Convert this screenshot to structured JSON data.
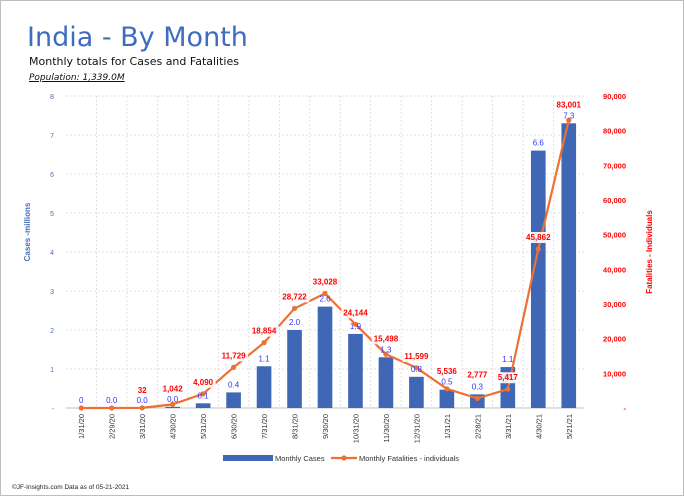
{
  "header": {
    "title": "India - By Month",
    "subtitle": "Monthly totals for Cases and Fatalities",
    "population": "Population: 1,339.0M"
  },
  "footer": "©JF-Insights.com  Data as of 05-21-2021",
  "colors": {
    "cases": "#3f67b5",
    "fatalities": "#ed7035",
    "fatal_label": "#ff0000",
    "case_label": "#3333ff",
    "axis_left": "#4a6fb8"
  },
  "chart_data": {
    "type": "bar+line",
    "categories": [
      "1/31/20",
      "2/29/20",
      "3/31/20",
      "4/30/20",
      "5/31/20",
      "6/30/20",
      "7/31/20",
      "8/31/20",
      "9/30/20",
      "10/31/20",
      "11/30/20",
      "12/31/20",
      "1/31/21",
      "2/28/21",
      "3/31/21",
      "4/30/21",
      "5/21/21"
    ],
    "series": [
      {
        "name": "Monthly Cases",
        "type": "bar",
        "axis": "left",
        "values": [
          0,
          0.0,
          0.001,
          0.03,
          0.12,
          0.4,
          1.07,
          2.0,
          2.6,
          1.9,
          1.3,
          0.8,
          0.47,
          0.35,
          1.05,
          6.6,
          7.3
        ],
        "labels": [
          "0",
          "0.0",
          "0.0",
          "0.0",
          "0.1",
          "0.4",
          "1.1",
          "2.0",
          "2.6",
          "1.9",
          "1.3",
          "0.8",
          "0.5",
          "0.3",
          "1.1",
          "6.6",
          "7.3"
        ]
      },
      {
        "name": "Monthly Fatalities - individuals",
        "type": "line",
        "axis": "right",
        "values": [
          0,
          0,
          32,
          1042,
          4090,
          11729,
          18854,
          28722,
          33028,
          24144,
          15498,
          11599,
          5536,
          2777,
          5417,
          45862,
          83001
        ],
        "labels": [
          "",
          "",
          "32",
          "1,042",
          "4,090",
          "11,729",
          "18,854",
          "28,722",
          "33,028",
          "24,144",
          "15,498",
          "11,599",
          "5,536",
          "2,777",
          "5,417",
          "45,862",
          "83,001"
        ]
      }
    ],
    "ylabel": "Cases -millions",
    "y2label": "Fatalities - Individuals",
    "ylim": [
      0,
      8
    ],
    "y2lim": [
      0,
      90000
    ],
    "yticks": [
      "-",
      "1",
      "2",
      "3",
      "4",
      "5",
      "6",
      "7",
      "8"
    ],
    "y2ticks": [
      "-",
      "10,000",
      "20,000",
      "30,000",
      "40,000",
      "50,000",
      "60,000",
      "70,000",
      "80,000",
      "90,000"
    ],
    "grid": true,
    "legend": "bottom"
  }
}
